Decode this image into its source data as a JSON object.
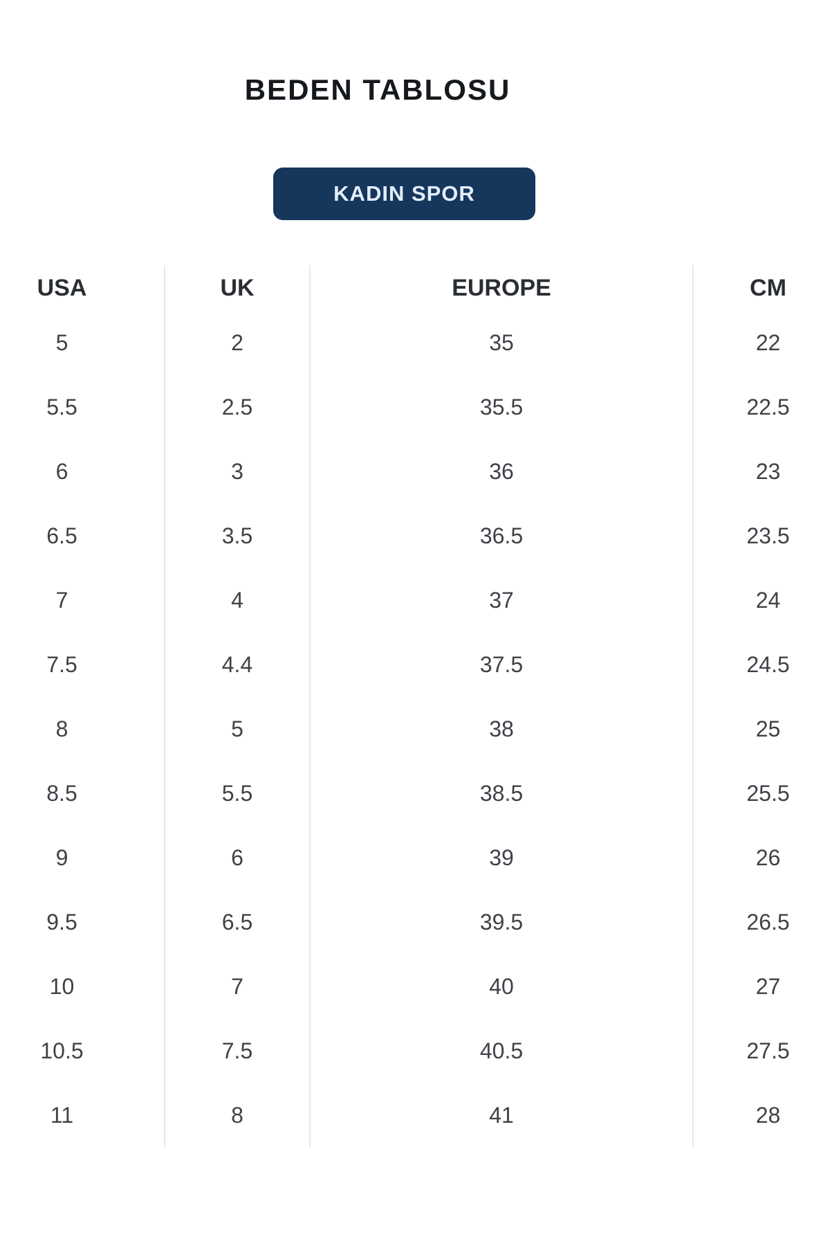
{
  "page": {
    "title": "BEDEN TABLOSU"
  },
  "category_button": {
    "label": "KADIN SPOR"
  },
  "size_table": {
    "columns": [
      "USA",
      "UK",
      "EUROPE",
      "CM"
    ],
    "rows": [
      [
        "5",
        "2",
        "35",
        "22"
      ],
      [
        "5.5",
        "2.5",
        "35.5",
        "22.5"
      ],
      [
        "6",
        "3",
        "36",
        "23"
      ],
      [
        "6.5",
        "3.5",
        "36.5",
        "23.5"
      ],
      [
        "7",
        "4",
        "37",
        "24"
      ],
      [
        "7.5",
        "4.4",
        "37.5",
        "24.5"
      ],
      [
        "8",
        "5",
        "38",
        "25"
      ],
      [
        "8.5",
        "5.5",
        "38.5",
        "25.5"
      ],
      [
        "9",
        "6",
        "39",
        "26"
      ],
      [
        "9.5",
        "6.5",
        "39.5",
        "26.5"
      ],
      [
        "10",
        "7",
        "40",
        "27"
      ],
      [
        "10.5",
        "7.5",
        "40.5",
        "27.5"
      ],
      [
        "11",
        "8",
        "41",
        "28"
      ]
    ]
  },
  "colors": {
    "button_background": "#17365c",
    "button_text": "#e3eefb",
    "title_text": "#15181d",
    "header_text": "#2a2e33",
    "cell_text": "#3e4247",
    "divider": "#e8e8ea",
    "page_background": "#ffffff"
  }
}
